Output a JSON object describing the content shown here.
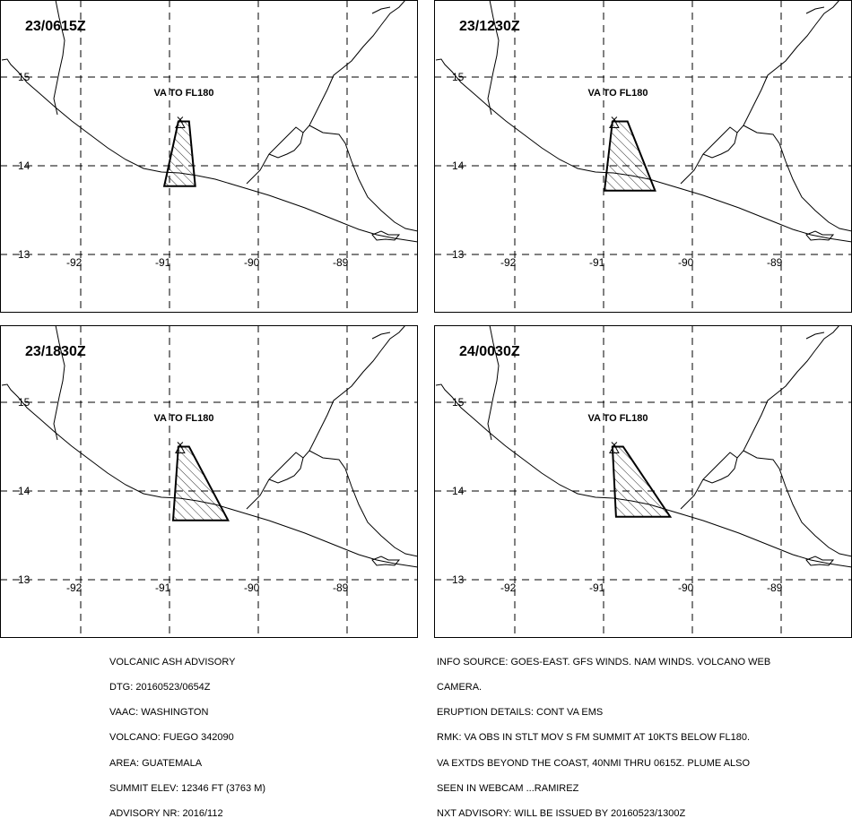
{
  "advisory": {
    "header": "VOLCANIC ASH ADVISORY",
    "dtg": "DTG: 20160523/0654Z",
    "vaac": "VAAC: WASHINGTON",
    "volcano": "VOLCANO: FUEGO 342090",
    "area": "AREA: GUATEMALA",
    "summit_elev": "SUMMIT ELEV: 12346 FT (3763 M)",
    "advisory_nr": "ADVISORY NR: 2016/112"
  },
  "info": {
    "line1": "INFO SOURCE: GOES-EAST. GFS WINDS. NAM WINDS. VOLCANO WEB",
    "line2": "CAMERA.",
    "line3": "ERUPTION DETAILS: CONT VA EMS",
    "line4": "RMK: VA OBS IN STLT MOV S FM SUMMIT AT 10KTS BELOW FL180.",
    "line5": "VA EXTDS BEYOND THE COAST, 40NMI THRU 0615Z. PLUME ALSO",
    "line6": "SEEN IN WEBCAM ...RAMIREZ",
    "line7": "NXT ADVISORY: WILL BE ISSUED BY 20160523/1300Z"
  },
  "map": {
    "lat_labels": [
      "15",
      "14",
      "13"
    ],
    "lon_labels": [
      "-92",
      "-91",
      "-90",
      "-89"
    ],
    "panels": [
      {
        "time": "23/0615Z",
        "label": "VA TO FL180",
        "polygon": [
          [
            14.5,
            -90.9
          ],
          [
            14.5,
            -90.78
          ],
          [
            13.77,
            -90.71
          ],
          [
            13.77,
            -91.06
          ]
        ]
      },
      {
        "time": "23/1230Z",
        "label": "VA TO FL180",
        "polygon": [
          [
            14.5,
            -90.9
          ],
          [
            14.5,
            -90.73
          ],
          [
            13.72,
            -90.42
          ],
          [
            13.72,
            -90.99
          ]
        ]
      },
      {
        "time": "23/1830Z",
        "label": "VA TO FL180",
        "polygon": [
          [
            14.5,
            -90.9
          ],
          [
            14.5,
            -90.78
          ],
          [
            13.67,
            -90.34
          ],
          [
            13.67,
            -90.96
          ]
        ]
      },
      {
        "time": "24/0030Z",
        "label": "VA TO FL180",
        "polygon": [
          [
            14.5,
            -90.9
          ],
          [
            14.5,
            -90.78
          ],
          [
            13.71,
            -90.25
          ],
          [
            13.71,
            -90.86
          ]
        ]
      }
    ],
    "volcano_marker": {
      "lat": 14.47,
      "lon": -90.88,
      "symbol": "triangle-icon"
    }
  }
}
